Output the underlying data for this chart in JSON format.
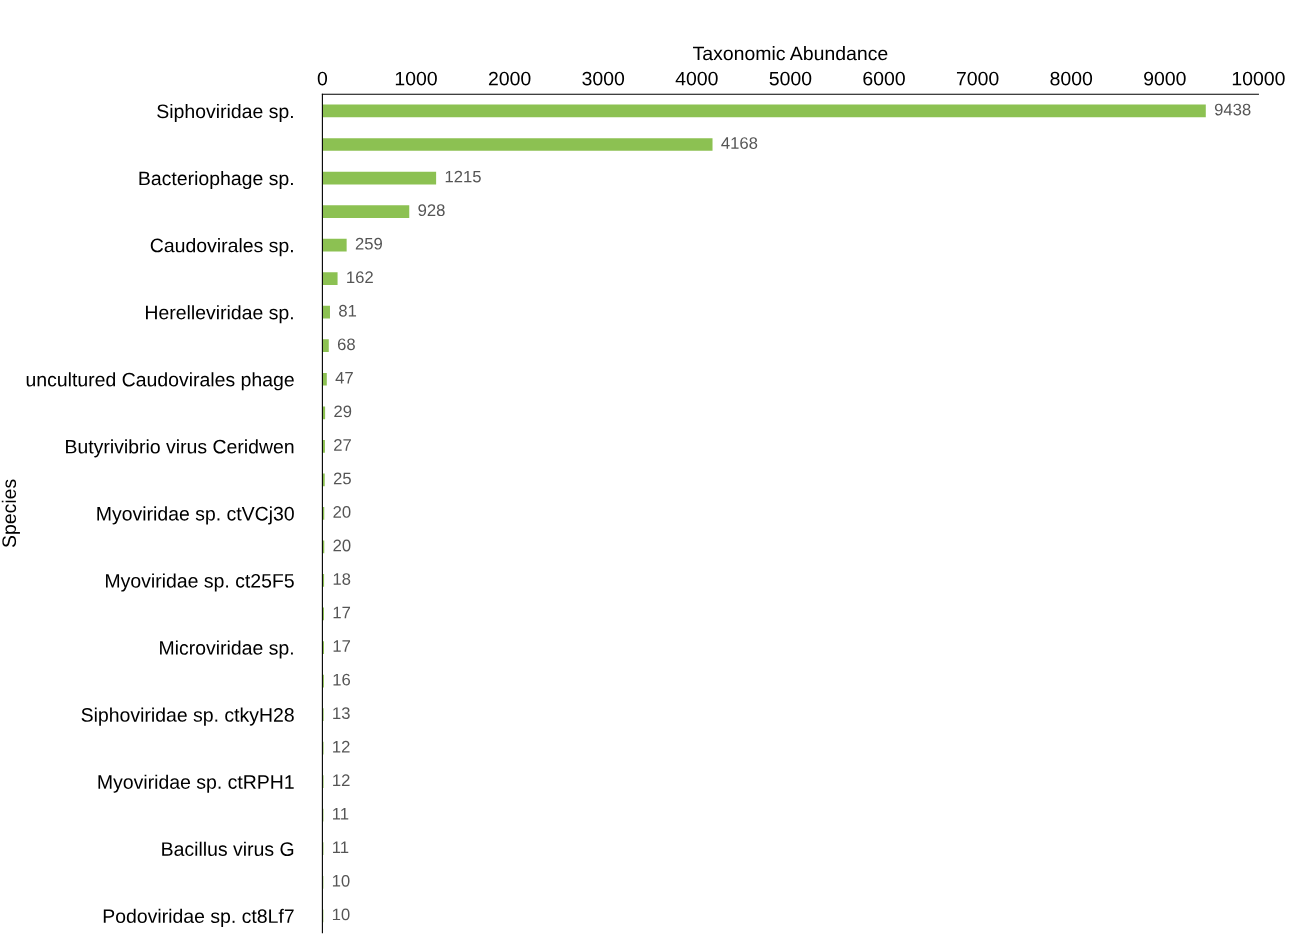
{
  "chart_data": {
    "type": "bar",
    "orientation": "horizontal",
    "xlabel": "Taxonomic Abundance",
    "ylabel": "Species",
    "categories": [
      "Siphoviridae sp.",
      null,
      "Bacteriophage sp.",
      null,
      "Caudovirales sp.",
      null,
      "Herelleviridae sp.",
      null,
      "uncultured Caudovirales phage",
      null,
      "Butyrivibrio virus Ceridwen",
      null,
      "Myoviridae sp. ctVCj30",
      null,
      "Myoviridae sp. ct25F5",
      null,
      "Microviridae sp.",
      null,
      "Siphoviridae sp. ctkyH28",
      null,
      "Myoviridae sp. ctRPH1",
      null,
      "Bacillus virus G",
      null,
      "Podoviridae sp. ct8Lf7"
    ],
    "values": [
      9438,
      4168,
      1215,
      928,
      259,
      162,
      81,
      68,
      47,
      29,
      27,
      25,
      20,
      20,
      18,
      17,
      17,
      16,
      13,
      12,
      12,
      11,
      11,
      10,
      10
    ],
    "color": "#8cc152",
    "xlim": [
      0,
      10000
    ],
    "xticks": [
      0,
      1000,
      2000,
      3000,
      4000,
      5000,
      6000,
      7000,
      8000,
      9000,
      10000
    ],
    "data_labels": true,
    "grid": false,
    "legend": false
  }
}
